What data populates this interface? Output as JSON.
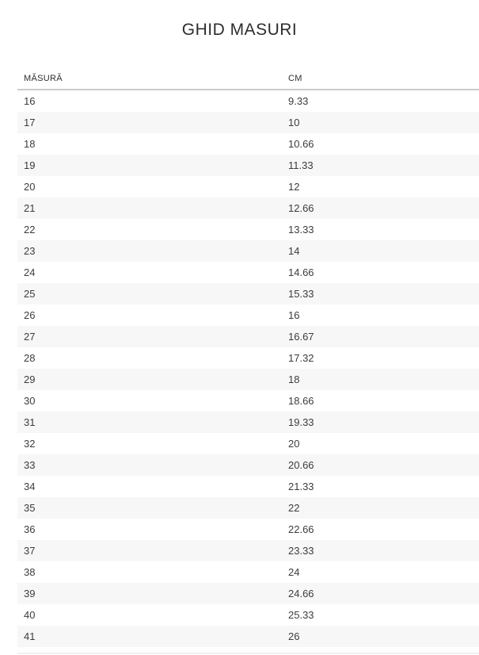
{
  "page": {
    "title": "GHID MASURI"
  },
  "table": {
    "columns": [
      "MĂSURĂ",
      "CM"
    ],
    "rows": [
      [
        "16",
        "9.33"
      ],
      [
        "17",
        "10"
      ],
      [
        "18",
        "10.66"
      ],
      [
        "19",
        "11.33"
      ],
      [
        "20",
        "12"
      ],
      [
        "21",
        "12.66"
      ],
      [
        "22",
        "13.33"
      ],
      [
        "23",
        "14"
      ],
      [
        "24",
        "14.66"
      ],
      [
        "25",
        "15.33"
      ],
      [
        "26",
        "16"
      ],
      [
        "27",
        "16.67"
      ],
      [
        "28",
        "17.32"
      ],
      [
        "29",
        "18"
      ],
      [
        "30",
        "18.66"
      ],
      [
        "31",
        "19.33"
      ],
      [
        "32",
        "20"
      ],
      [
        "33",
        "20.66"
      ],
      [
        "34",
        "21.33"
      ],
      [
        "35",
        "22"
      ],
      [
        "36",
        "22.66"
      ],
      [
        "37",
        "23.33"
      ],
      [
        "38",
        "24"
      ],
      [
        "39",
        "24.66"
      ],
      [
        "40",
        "25.33"
      ],
      [
        "41",
        "26"
      ]
    ]
  },
  "colors": {
    "title_text": "#2d2d2d",
    "header_text": "#2e2e2e",
    "cell_text": "#3c3c3c",
    "stripe": "#f7f7f7",
    "header_border": "#cccccc",
    "partial_row": "#f1f1f1",
    "background": "#ffffff"
  }
}
